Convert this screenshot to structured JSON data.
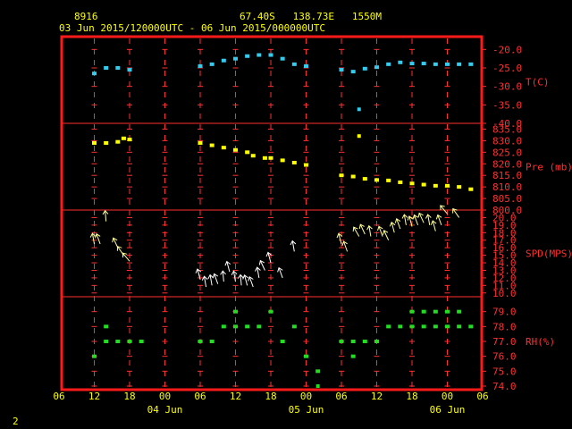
{
  "header": {
    "station": "8916",
    "location": "67.40S   138.73E   1550M",
    "range": "03 Jun 2015/120000UTC - 06 Jun 2015/000000UTC"
  },
  "footer": {
    "page": "2"
  },
  "colors": {
    "frame": "#ff1a1a",
    "grid": "#ff3030",
    "text": "#ffff00",
    "label": "#ff3030",
    "temp": "#33ccee",
    "pres": "#ffff00",
    "wind_old": "#ffff99",
    "wind_new": "#ffffff",
    "rh": "#22dd22"
  },
  "chart_data": {
    "type": "scatter",
    "x_axis": {
      "ticks": [
        "06",
        "12",
        "18",
        "00",
        "06",
        "12",
        "18",
        "00",
        "06",
        "12",
        "18",
        "00",
        "06"
      ],
      "day_labels": [
        {
          "label": "04 Jun",
          "at_tick": 3
        },
        {
          "label": "05 Jun",
          "at_tick": 7
        },
        {
          "label": "06 Jun",
          "at_tick": 11
        }
      ]
    },
    "panels": [
      {
        "id": "temp",
        "ylabel": "T(C)",
        "range": [
          -40,
          -17.5
        ],
        "ticks": [
          "-20.0",
          "-25.0",
          "-30.0",
          "-35.0",
          "-40.0"
        ],
        "tick_values": [
          -20,
          -25,
          -30,
          -35,
          -40
        ],
        "x": [
          12,
          14,
          16,
          18,
          30,
          32,
          34,
          36,
          38,
          40,
          42,
          44,
          46,
          48,
          54,
          56,
          58,
          60,
          62,
          64,
          66,
          68,
          70,
          72,
          74,
          76
        ],
        "y": [
          -26.5,
          -25,
          -25,
          -25.5,
          -24.5,
          -24,
          -23,
          -22.5,
          -21.8,
          -21.5,
          -21.5,
          -22.5,
          -24,
          -24.5,
          -25.5,
          -26,
          -25.2,
          -24.8,
          -24,
          -23.5,
          -23.8,
          -23.8,
          -24,
          -24,
          -24,
          -24
        ],
        "outliers": [
          {
            "x": 57,
            "y": -36.2
          }
        ]
      },
      {
        "id": "pres",
        "ylabel": "Pre (mb)",
        "range": [
          800,
          837.5
        ],
        "ticks": [
          "835.0",
          "830.0",
          "825.0",
          "820.0",
          "815.0",
          "810.0",
          "805.0",
          "800.0"
        ],
        "tick_values": [
          835,
          830,
          825,
          820,
          815,
          810,
          805,
          800
        ],
        "x": [
          12,
          14,
          16,
          17,
          18,
          30,
          32,
          34,
          36,
          38,
          39,
          41,
          42,
          44,
          46,
          48,
          54,
          56,
          58,
          60,
          62,
          64,
          66,
          68,
          70,
          72,
          74,
          76
        ],
        "y": [
          829,
          829,
          829.5,
          831,
          830.5,
          829,
          828,
          827,
          826,
          825,
          823.5,
          822.5,
          822.5,
          821.5,
          820.5,
          819.5,
          815,
          814.5,
          813.5,
          813,
          812.8,
          812,
          811.5,
          811,
          810.5,
          810.5,
          810,
          809
        ],
        "outliers": [
          {
            "x": 57,
            "y": 832
          }
        ]
      },
      {
        "id": "wind",
        "ylabel": "SPD(MPS)",
        "range": [
          9.5,
          21
        ],
        "ticks": [
          "20.0",
          "19.0",
          "18.0",
          "17.0",
          "16.0",
          "15.0",
          "14.0",
          "13.0",
          "12.0",
          "11.0",
          "10.0"
        ],
        "tick_values": [
          20,
          19,
          18,
          17,
          16,
          15,
          14,
          13,
          12,
          11,
          10
        ],
        "x": [
          12,
          13,
          14,
          16,
          17,
          18,
          30,
          31,
          32,
          33,
          34,
          35,
          36,
          37,
          38,
          39,
          40,
          41,
          42,
          44,
          46,
          54,
          55,
          57,
          58,
          59,
          61,
          62,
          63,
          64,
          65,
          66,
          67,
          68,
          69,
          70,
          71,
          72,
          74
        ],
        "y": [
          16.5,
          16.5,
          19.5,
          16,
          15,
          14.2,
          11.8,
          10.8,
          11,
          11.2,
          11.5,
          12.8,
          11.5,
          11,
          11,
          10.8,
          12,
          13,
          14,
          12,
          15.5,
          16.5,
          15.5,
          17.5,
          17.8,
          17.5,
          17.5,
          17,
          18,
          18.5,
          19,
          18.8,
          19,
          19.3,
          19,
          18.2,
          19,
          20.5,
          20
        ],
        "angles": [
          -10,
          -20,
          -5,
          -25,
          -35,
          -40,
          -15,
          -10,
          -10,
          -20,
          -5,
          -15,
          -10,
          -5,
          -15,
          -20,
          -10,
          -25,
          -15,
          -20,
          -10,
          -15,
          -20,
          -30,
          -25,
          -10,
          -20,
          -25,
          -15,
          -20,
          -10,
          -15,
          -20,
          -25,
          -10,
          -15,
          -20,
          -40,
          -35
        ],
        "outliers": []
      },
      {
        "id": "rh",
        "ylabel": "RH(%)",
        "range": [
          74,
          80
        ],
        "ticks": [
          "79.0",
          "78.0",
          "77.0",
          "76.0",
          "75.0",
          "74.0"
        ],
        "tick_values": [
          79,
          78,
          77,
          76,
          75,
          74
        ],
        "x": [
          12,
          14,
          14,
          16,
          18,
          20,
          30,
          32,
          34,
          36,
          36,
          38,
          40,
          42,
          44,
          46,
          48,
          50,
          54,
          56,
          56,
          58,
          60,
          62,
          64,
          66,
          66,
          68,
          68,
          70,
          70,
          72,
          72,
          74,
          74,
          76
        ],
        "y": [
          76,
          78,
          77,
          77,
          77,
          77,
          77,
          77,
          78,
          78,
          79,
          78,
          78,
          79,
          77,
          78,
          76,
          75,
          77,
          77,
          76,
          77,
          77,
          78,
          78,
          78,
          79,
          79,
          78,
          79,
          78,
          79,
          78,
          79,
          78,
          78
        ],
        "outliers": [
          {
            "x": 50,
            "y": 74
          }
        ]
      }
    ]
  }
}
